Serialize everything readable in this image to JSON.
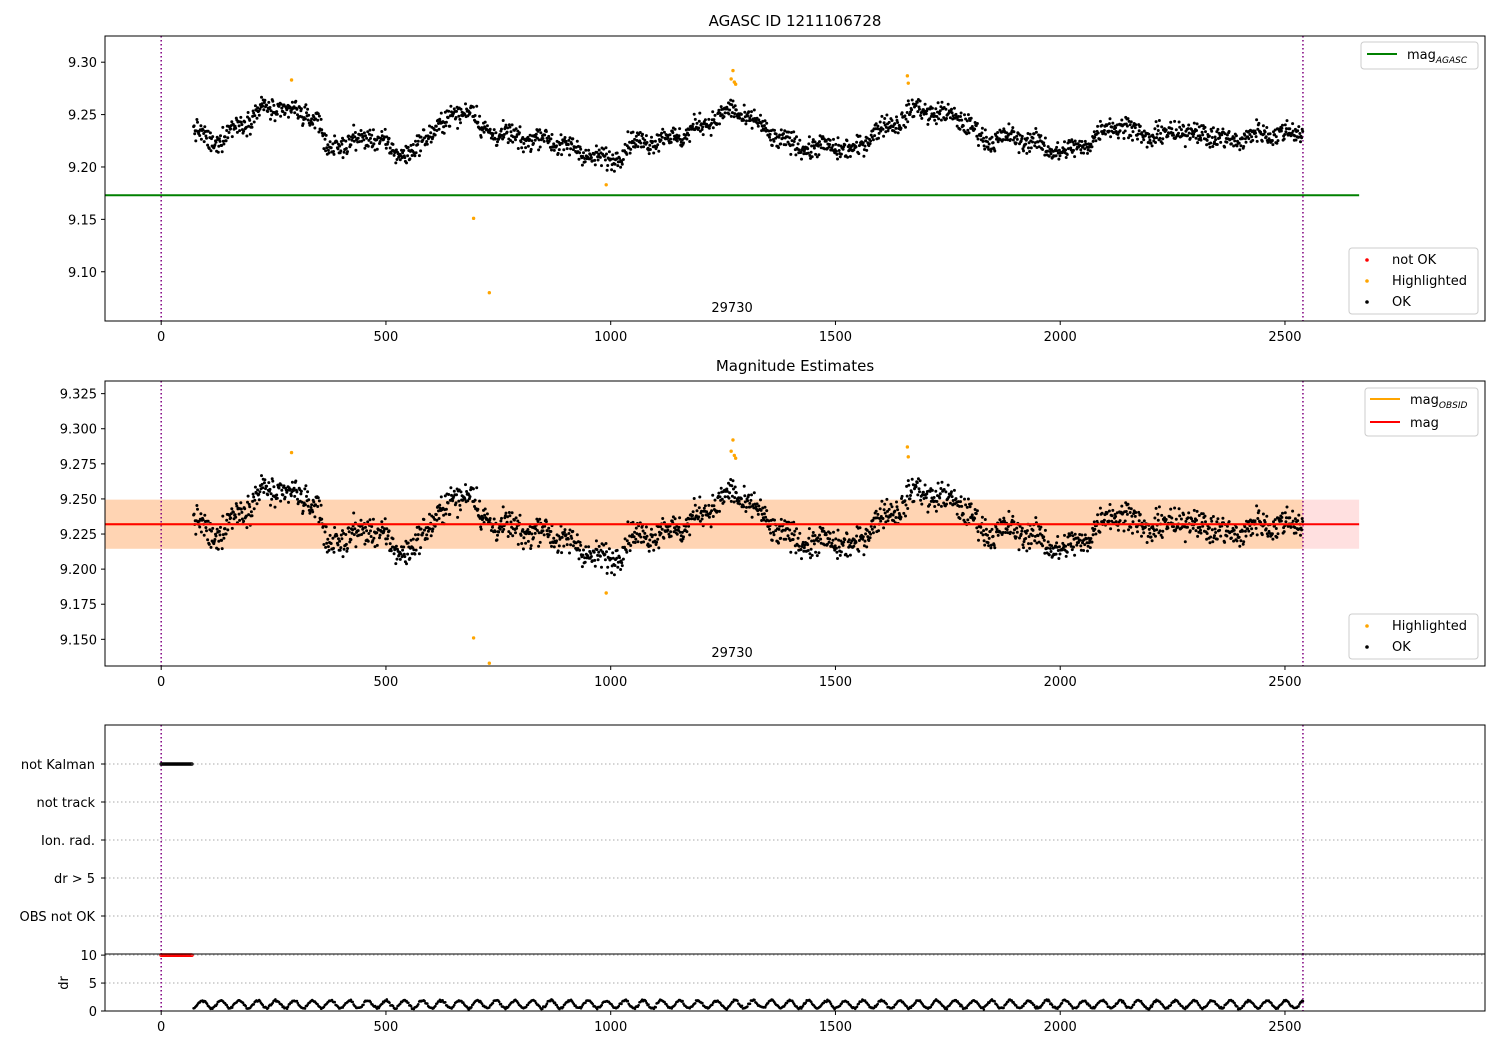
{
  "chart_data": [
    {
      "panel": "top",
      "type": "scatter",
      "title": "AGASC ID 1211106728",
      "xlim": [
        -125,
        2945
      ],
      "ylim": [
        9.053,
        9.325
      ],
      "x_ticks": [
        0,
        500,
        1000,
        1500,
        2000,
        2500
      ],
      "y_ticks": [
        9.1,
        9.15,
        9.2,
        9.25,
        9.3
      ],
      "grid": false,
      "obsid_label": {
        "text": "29730",
        "x": 1270
      },
      "obsid_boundaries_x": [
        0,
        2540
      ],
      "reference_lines": [
        {
          "name": "mag_AGASC",
          "y": 9.173,
          "x_range": [
            -125,
            2665
          ],
          "color": "#008000"
        }
      ],
      "series": [
        {
          "name": "not OK",
          "color": "#ff0000",
          "points": []
        },
        {
          "name": "Highlighted",
          "color": "#ffa500",
          "points": [
            [
              290,
              9.283
            ],
            [
              695,
              9.151
            ],
            [
              730,
              9.08
            ],
            [
              990,
              9.183
            ],
            [
              1268,
              9.284
            ],
            [
              1272,
              9.292
            ],
            [
              1275,
              9.281
            ],
            [
              1278,
              9.279
            ],
            [
              1660,
              9.287
            ],
            [
              1662,
              9.28
            ]
          ]
        },
        {
          "name": "OK",
          "color": "#000000",
          "description": "about 2000 points spanning x 70 to 2540, y mostly 9.19 to 9.28"
        }
      ],
      "legend": {
        "placement": "top-right",
        "entries": [
          {
            "label": "mag",
            "sub": "AGASC",
            "style": "line",
            "color": "#008000"
          }
        ]
      },
      "legend2": {
        "placement": "bottom-right",
        "entries": [
          {
            "label": "not OK",
            "color": "#ff0000"
          },
          {
            "label": "Highlighted",
            "color": "#ffa500"
          },
          {
            "label": "OK",
            "color": "#000000"
          }
        ]
      }
    },
    {
      "panel": "middle",
      "type": "scatter",
      "title": "Magnitude Estimates",
      "xlim": [
        -125,
        2945
      ],
      "ylim": [
        9.131,
        9.334
      ],
      "x_ticks": [
        0,
        500,
        1000,
        1500,
        2000,
        2500
      ],
      "y_ticks": [
        9.15,
        9.175,
        9.2,
        9.225,
        9.25,
        9.275,
        9.3,
        9.325
      ],
      "grid": false,
      "obsid_label": {
        "text": "29730",
        "x": 1270
      },
      "obsid_boundaries_x": [
        0,
        2540
      ],
      "bands": [
        {
          "name": "mag band",
          "y_range": [
            9.2145,
            9.2495
          ],
          "x_range": [
            -125,
            2665
          ],
          "color": "#ff0000",
          "opacity": 0.12
        },
        {
          "name": "mag_OBSID band",
          "y_range": [
            9.2145,
            9.2495
          ],
          "x_range": [
            -125,
            2540
          ],
          "color": "#ffa500",
          "opacity": 0.2
        }
      ],
      "reference_lines": [
        {
          "name": "mag_OBSID",
          "y": 9.232,
          "x_range": [
            -125,
            2540
          ],
          "color": "#ffa500"
        },
        {
          "name": "mag",
          "y": 9.232,
          "x_range": [
            -125,
            2665
          ],
          "color": "#ff0000"
        }
      ],
      "series": [
        {
          "name": "Highlighted",
          "color": "#ffa500",
          "points": [
            [
              290,
              9.283
            ],
            [
              695,
              9.151
            ],
            [
              730,
              9.133
            ],
            [
              990,
              9.183
            ],
            [
              1268,
              9.284
            ],
            [
              1272,
              9.292
            ],
            [
              1275,
              9.281
            ],
            [
              1278,
              9.279
            ],
            [
              1660,
              9.287
            ],
            [
              1662,
              9.28
            ]
          ]
        },
        {
          "name": "OK",
          "color": "#000000",
          "description": "same points as the top panel"
        }
      ],
      "legend": {
        "placement": "top-right",
        "entries": [
          {
            "label": "mag",
            "sub": "OBSID",
            "style": "line",
            "color": "#ffa500"
          },
          {
            "label": "mag",
            "style": "line",
            "color": "#ff0000"
          }
        ]
      },
      "legend2": {
        "placement": "bottom-right",
        "entries": [
          {
            "label": "Highlighted",
            "color": "#ffa500"
          },
          {
            "label": "OK",
            "color": "#000000"
          }
        ]
      }
    },
    {
      "panel": "flags",
      "type": "scatter",
      "xlim": [
        -125,
        2945
      ],
      "x_ticks": [
        0,
        500,
        1000,
        1500,
        2000,
        2500
      ],
      "categories": [
        "not Kalman",
        "not track",
        "Ion. rad.",
        "dr > 5",
        "OBS not OK"
      ],
      "obsid_boundaries_x": [
        0,
        2540
      ],
      "series": [
        {
          "name": "not Kalman",
          "color": "#000000",
          "x_range": [
            0,
            70
          ]
        }
      ]
    },
    {
      "panel": "dr",
      "type": "scatter",
      "xlim": [
        -125,
        2945
      ],
      "ylim": [
        0,
        10.2
      ],
      "ylabel": "dr",
      "x_ticks": [
        0,
        500,
        1000,
        1500,
        2000,
        2500
      ],
      "x_tick_labels": [
        "0",
        "500",
        "1000",
        "1500",
        "2000",
        "2500"
      ],
      "y_ticks": [
        0,
        5,
        10
      ],
      "y_tick_labels": [
        "0",
        "5",
        "10"
      ],
      "obsid_boundaries_x": [
        0,
        2540
      ],
      "series": [
        {
          "name": "dr clipped",
          "color": "#ff0000",
          "y": 10,
          "x_range": [
            0,
            70
          ]
        },
        {
          "name": "dr",
          "color": "#000000",
          "description": "values mostly 0.5 to 2.5 from x 70 to 2540"
        }
      ]
    }
  ]
}
